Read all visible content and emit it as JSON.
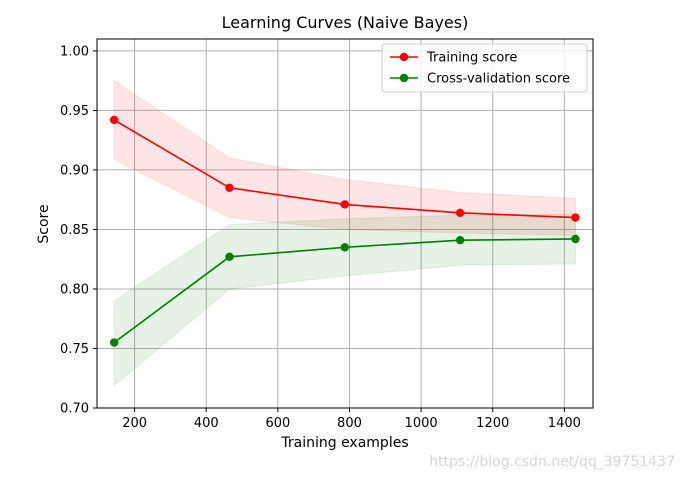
{
  "chart_data": {
    "type": "line",
    "title": "Learning Curves (Naive Bayes)",
    "xlabel": "Training examples",
    "ylabel": "Score",
    "xlim": [
      95,
      1480
    ],
    "ylim": [
      0.7,
      1.01
    ],
    "xticks": [
      200,
      400,
      600,
      800,
      1000,
      1200,
      1400
    ],
    "xtick_labels": [
      "200",
      "400",
      "600",
      "800",
      "1000",
      "1200",
      "1400"
    ],
    "yticks": [
      0.7,
      0.75,
      0.8,
      0.85,
      0.9,
      0.95,
      1.0
    ],
    "ytick_labels": [
      "0.70",
      "0.75",
      "0.80",
      "0.85",
      "0.90",
      "0.95",
      "1.00"
    ],
    "grid": true,
    "legend_position": "top-right",
    "x": [
      143,
      465,
      787,
      1109,
      1431
    ],
    "series": [
      {
        "name": "Training score",
        "color": "#ff0000",
        "band_color": "#ff0000",
        "values": [
          0.942,
          0.885,
          0.871,
          0.864,
          0.86
        ],
        "lower": [
          0.909,
          0.86,
          0.85,
          0.847,
          0.845
        ],
        "upper": [
          0.975,
          0.91,
          0.892,
          0.881,
          0.876
        ]
      },
      {
        "name": "Cross-validation score",
        "color": "#008000",
        "band_color": "#008000",
        "values": [
          0.755,
          0.827,
          0.835,
          0.841,
          0.842
        ],
        "lower": [
          0.719,
          0.8,
          0.811,
          0.82,
          0.821
        ],
        "upper": [
          0.79,
          0.854,
          0.859,
          0.862,
          0.863
        ]
      }
    ]
  },
  "watermark": "https://blog.csdn.net/qq_39751437"
}
